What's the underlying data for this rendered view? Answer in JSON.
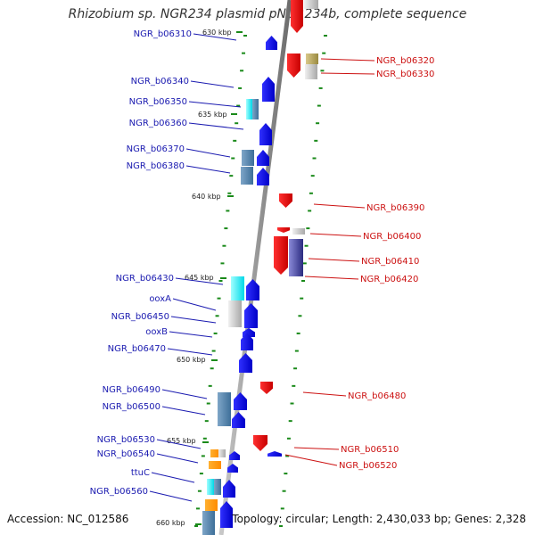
{
  "title": "Rhizobium sp. NGR234 plasmid pNGR234b, complete sequence",
  "footer": {
    "accession": "Accession: NC_012586",
    "topology": "Topology: circular; Length: 2,430,033 bp; Genes: 2,328"
  },
  "colors": {
    "strand_plus": "#1010e0",
    "strand_minus": "#e01010",
    "label_plus": "#1a1ab0",
    "label_minus": "#cc1111",
    "backbone": "#8c8c8c",
    "tick": "#1a8a1a"
  },
  "kbp_ticks": [
    "630 kbp",
    "635 kbp",
    "640 kbp",
    "645 kbp",
    "650 kbp",
    "655 kbp",
    "660 kbp"
  ],
  "genes_left": [
    "NGR_b06310",
    "NGR_b06340",
    "NGR_b06350",
    "NGR_b06360",
    "NGR_b06370",
    "NGR_b06380",
    "NGR_b06430",
    "ooxA",
    "NGR_b06450",
    "ooxB",
    "NGR_b06470",
    "NGR_b06490",
    "NGR_b06500",
    "NGR_b06530",
    "NGR_b06540",
    "ttuC",
    "NGR_b06560"
  ],
  "genes_right": [
    "NGR_b06320",
    "NGR_b06330",
    "NGR_b06390",
    "NGR_b06400",
    "NGR_b06410",
    "NGR_b06420",
    "NGR_b06480",
    "NGR_b06510",
    "NGR_b06520"
  ]
}
